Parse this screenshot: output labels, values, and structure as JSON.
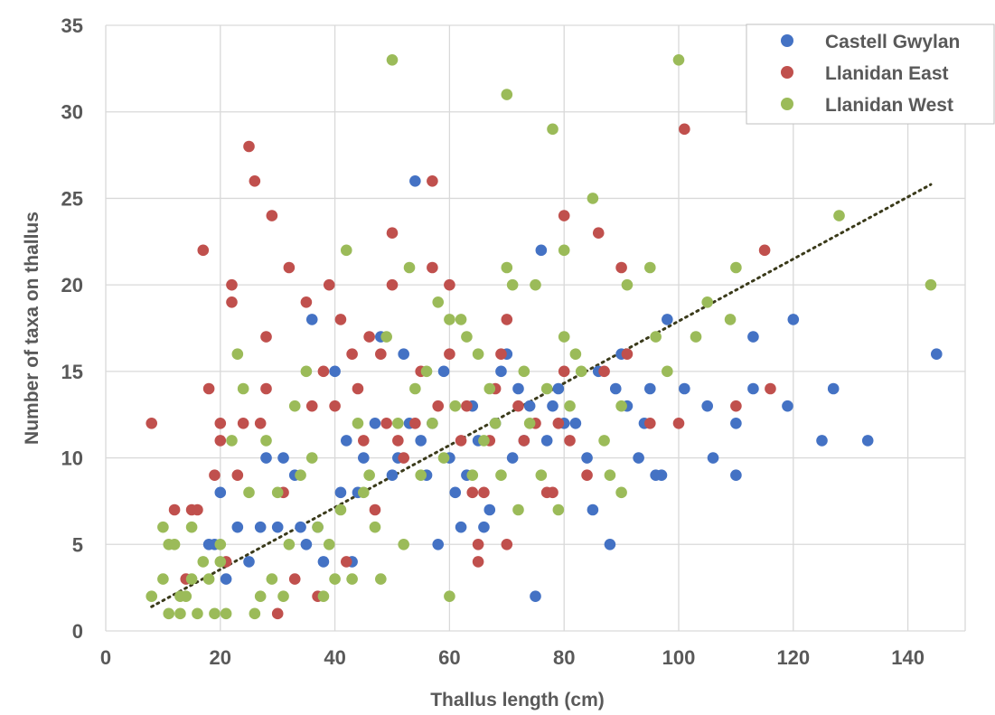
{
  "chart_data": {
    "type": "scatter",
    "title": "",
    "xlabel": "Thallus length (cm)",
    "ylabel": "Number of taxa on thallus",
    "xlim": [
      0,
      150
    ],
    "ylim": [
      0,
      35
    ],
    "x_ticks": [
      0,
      20,
      40,
      60,
      80,
      100,
      120,
      140
    ],
    "y_ticks": [
      0,
      5,
      10,
      15,
      20,
      25,
      30,
      35
    ],
    "grid": true,
    "legend_position": "top-right",
    "series": [
      {
        "name": "Castell Gwylan",
        "color": "#4472C4",
        "points": [
          [
            18,
            5
          ],
          [
            19,
            5
          ],
          [
            20,
            8
          ],
          [
            21,
            3
          ],
          [
            23,
            6
          ],
          [
            25,
            4
          ],
          [
            27,
            6
          ],
          [
            28,
            10
          ],
          [
            30,
            6
          ],
          [
            31,
            10
          ],
          [
            33,
            9
          ],
          [
            34,
            6
          ],
          [
            35,
            5
          ],
          [
            36,
            18
          ],
          [
            37,
            6
          ],
          [
            38,
            4
          ],
          [
            40,
            15
          ],
          [
            41,
            8
          ],
          [
            42,
            11
          ],
          [
            43,
            4
          ],
          [
            44,
            8
          ],
          [
            45,
            10
          ],
          [
            47,
            12
          ],
          [
            48,
            17
          ],
          [
            50,
            9
          ],
          [
            51,
            10
          ],
          [
            52,
            16
          ],
          [
            53,
            12
          ],
          [
            54,
            26
          ],
          [
            55,
            11
          ],
          [
            56,
            9
          ],
          [
            57,
            12
          ],
          [
            58,
            5
          ],
          [
            59,
            15
          ],
          [
            60,
            10
          ],
          [
            61,
            8
          ],
          [
            62,
            6
          ],
          [
            63,
            9
          ],
          [
            64,
            13
          ],
          [
            65,
            11
          ],
          [
            66,
            6
          ],
          [
            67,
            7
          ],
          [
            68,
            12
          ],
          [
            69,
            15
          ],
          [
            70,
            16
          ],
          [
            71,
            10
          ],
          [
            72,
            14
          ],
          [
            73,
            11
          ],
          [
            74,
            13
          ],
          [
            75,
            2
          ],
          [
            76,
            22
          ],
          [
            77,
            11
          ],
          [
            78,
            13
          ],
          [
            79,
            14
          ],
          [
            80,
            12
          ],
          [
            82,
            12
          ],
          [
            84,
            10
          ],
          [
            85,
            7
          ],
          [
            86,
            15
          ],
          [
            88,
            5
          ],
          [
            89,
            14
          ],
          [
            90,
            16
          ],
          [
            91,
            13
          ],
          [
            93,
            10
          ],
          [
            94,
            12
          ],
          [
            95,
            14
          ],
          [
            96,
            9
          ],
          [
            97,
            9
          ],
          [
            98,
            18
          ],
          [
            101,
            14
          ],
          [
            105,
            13
          ],
          [
            106,
            10
          ],
          [
            110,
            12
          ],
          [
            110,
            9
          ],
          [
            113,
            17
          ],
          [
            113,
            14
          ],
          [
            120,
            18
          ],
          [
            119,
            13
          ],
          [
            125,
            11
          ],
          [
            127,
            14
          ],
          [
            133,
            11
          ],
          [
            145,
            16
          ]
        ]
      },
      {
        "name": "Llanidan East",
        "color": "#C0504D",
        "points": [
          [
            8,
            12
          ],
          [
            12,
            7
          ],
          [
            14,
            3
          ],
          [
            15,
            7
          ],
          [
            16,
            7
          ],
          [
            17,
            22
          ],
          [
            18,
            14
          ],
          [
            19,
            9
          ],
          [
            20,
            12
          ],
          [
            20,
            11
          ],
          [
            21,
            4
          ],
          [
            22,
            20
          ],
          [
            22,
            19
          ],
          [
            23,
            9
          ],
          [
            24,
            12
          ],
          [
            25,
            28
          ],
          [
            26,
            26
          ],
          [
            27,
            12
          ],
          [
            28,
            17
          ],
          [
            28,
            14
          ],
          [
            29,
            24
          ],
          [
            30,
            1
          ],
          [
            31,
            8
          ],
          [
            32,
            21
          ],
          [
            33,
            3
          ],
          [
            35,
            19
          ],
          [
            36,
            13
          ],
          [
            37,
            2
          ],
          [
            38,
            15
          ],
          [
            39,
            20
          ],
          [
            40,
            13
          ],
          [
            41,
            18
          ],
          [
            42,
            4
          ],
          [
            43,
            16
          ],
          [
            44,
            14
          ],
          [
            45,
            11
          ],
          [
            46,
            17
          ],
          [
            47,
            7
          ],
          [
            48,
            16
          ],
          [
            49,
            12
          ],
          [
            50,
            23
          ],
          [
            50,
            20
          ],
          [
            51,
            11
          ],
          [
            52,
            10
          ],
          [
            54,
            12
          ],
          [
            55,
            15
          ],
          [
            57,
            26
          ],
          [
            57,
            21
          ],
          [
            58,
            13
          ],
          [
            60,
            20
          ],
          [
            60,
            16
          ],
          [
            62,
            11
          ],
          [
            63,
            13
          ],
          [
            64,
            8
          ],
          [
            65,
            5
          ],
          [
            65,
            4
          ],
          [
            66,
            8
          ],
          [
            67,
            11
          ],
          [
            68,
            14
          ],
          [
            69,
            16
          ],
          [
            70,
            18
          ],
          [
            70,
            5
          ],
          [
            72,
            13
          ],
          [
            73,
            11
          ],
          [
            75,
            12
          ],
          [
            77,
            8
          ],
          [
            78,
            8
          ],
          [
            79,
            12
          ],
          [
            80,
            24
          ],
          [
            80,
            15
          ],
          [
            81,
            11
          ],
          [
            84,
            9
          ],
          [
            86,
            23
          ],
          [
            87,
            15
          ],
          [
            90,
            21
          ],
          [
            91,
            16
          ],
          [
            95,
            12
          ],
          [
            100,
            12
          ],
          [
            101,
            29
          ],
          [
            110,
            13
          ],
          [
            115,
            22
          ],
          [
            116,
            14
          ]
        ]
      },
      {
        "name": "Llanidan West",
        "color": "#9BBB59",
        "points": [
          [
            8,
            2
          ],
          [
            10,
            6
          ],
          [
            10,
            3
          ],
          [
            11,
            1
          ],
          [
            11,
            5
          ],
          [
            12,
            5
          ],
          [
            13,
            2
          ],
          [
            13,
            1
          ],
          [
            14,
            2
          ],
          [
            15,
            3
          ],
          [
            15,
            6
          ],
          [
            16,
            1
          ],
          [
            17,
            4
          ],
          [
            18,
            3
          ],
          [
            19,
            1
          ],
          [
            20,
            5
          ],
          [
            20,
            4
          ],
          [
            21,
            1
          ],
          [
            22,
            11
          ],
          [
            23,
            16
          ],
          [
            24,
            14
          ],
          [
            25,
            8
          ],
          [
            26,
            1
          ],
          [
            27,
            2
          ],
          [
            28,
            11
          ],
          [
            29,
            3
          ],
          [
            30,
            8
          ],
          [
            31,
            2
          ],
          [
            32,
            5
          ],
          [
            33,
            13
          ],
          [
            34,
            9
          ],
          [
            35,
            15
          ],
          [
            36,
            10
          ],
          [
            37,
            6
          ],
          [
            38,
            2
          ],
          [
            39,
            5
          ],
          [
            40,
            3
          ],
          [
            41,
            7
          ],
          [
            42,
            22
          ],
          [
            43,
            3
          ],
          [
            44,
            12
          ],
          [
            45,
            8
          ],
          [
            46,
            9
          ],
          [
            47,
            6
          ],
          [
            48,
            3
          ],
          [
            49,
            17
          ],
          [
            50,
            33
          ],
          [
            51,
            12
          ],
          [
            52,
            5
          ],
          [
            53,
            21
          ],
          [
            54,
            14
          ],
          [
            55,
            9
          ],
          [
            56,
            15
          ],
          [
            57,
            12
          ],
          [
            58,
            19
          ],
          [
            59,
            10
          ],
          [
            60,
            2
          ],
          [
            60,
            18
          ],
          [
            61,
            13
          ],
          [
            62,
            18
          ],
          [
            63,
            17
          ],
          [
            64,
            9
          ],
          [
            65,
            16
          ],
          [
            66,
            11
          ],
          [
            67,
            14
          ],
          [
            68,
            12
          ],
          [
            69,
            9
          ],
          [
            70,
            31
          ],
          [
            70,
            21
          ],
          [
            71,
            20
          ],
          [
            72,
            7
          ],
          [
            73,
            15
          ],
          [
            74,
            12
          ],
          [
            75,
            20
          ],
          [
            76,
            9
          ],
          [
            77,
            14
          ],
          [
            78,
            29
          ],
          [
            79,
            7
          ],
          [
            80,
            22
          ],
          [
            80,
            17
          ],
          [
            81,
            13
          ],
          [
            82,
            16
          ],
          [
            83,
            15
          ],
          [
            85,
            25
          ],
          [
            87,
            11
          ],
          [
            88,
            9
          ],
          [
            90,
            8
          ],
          [
            90,
            13
          ],
          [
            91,
            20
          ],
          [
            95,
            21
          ],
          [
            96,
            17
          ],
          [
            98,
            15
          ],
          [
            100,
            33
          ],
          [
            103,
            17
          ],
          [
            105,
            19
          ],
          [
            109,
            18
          ],
          [
            110,
            21
          ],
          [
            128,
            24
          ],
          [
            144,
            20
          ]
        ]
      }
    ],
    "trendline": {
      "type": "linear",
      "style": "dotted",
      "color": "#3a3a1a",
      "x": [
        8,
        144
      ],
      "y": [
        1.4,
        25.8
      ]
    }
  }
}
